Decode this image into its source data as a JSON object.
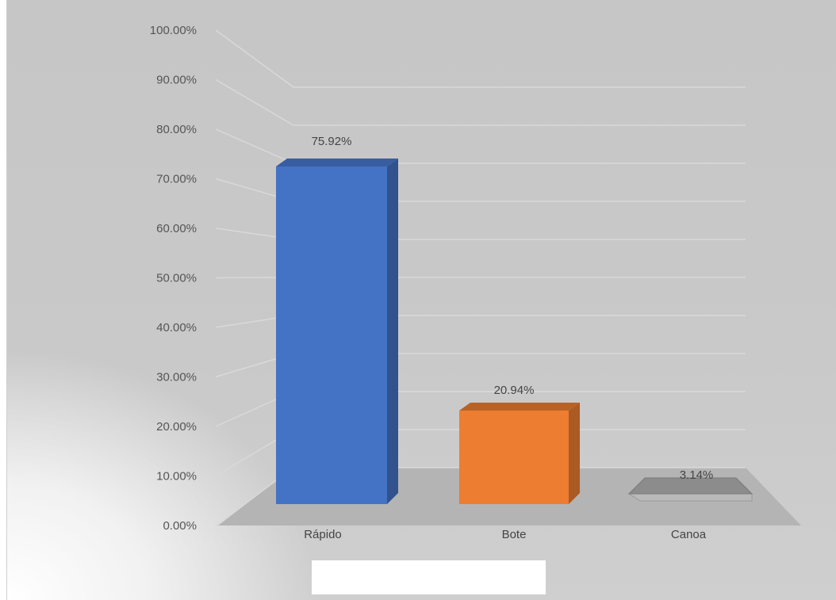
{
  "chart_data": {
    "type": "bar",
    "categories": [
      "Rápido",
      "Bote",
      "Canoa"
    ],
    "values": [
      75.92,
      20.94,
      3.14
    ],
    "value_labels": [
      "75.92%",
      "20.94%",
      "3.14%"
    ],
    "ylim": [
      0,
      100
    ],
    "yticks": [
      "0.00%",
      "10.00%",
      "20.00%",
      "30.00%",
      "40.00%",
      "50.00%",
      "60.00%",
      "70.00%",
      "80.00%",
      "90.00%",
      "100.00%"
    ],
    "grid": true,
    "style": "3d-column",
    "colors": [
      "#4472c4",
      "#ed7d31",
      "#a5a5a5"
    ]
  }
}
